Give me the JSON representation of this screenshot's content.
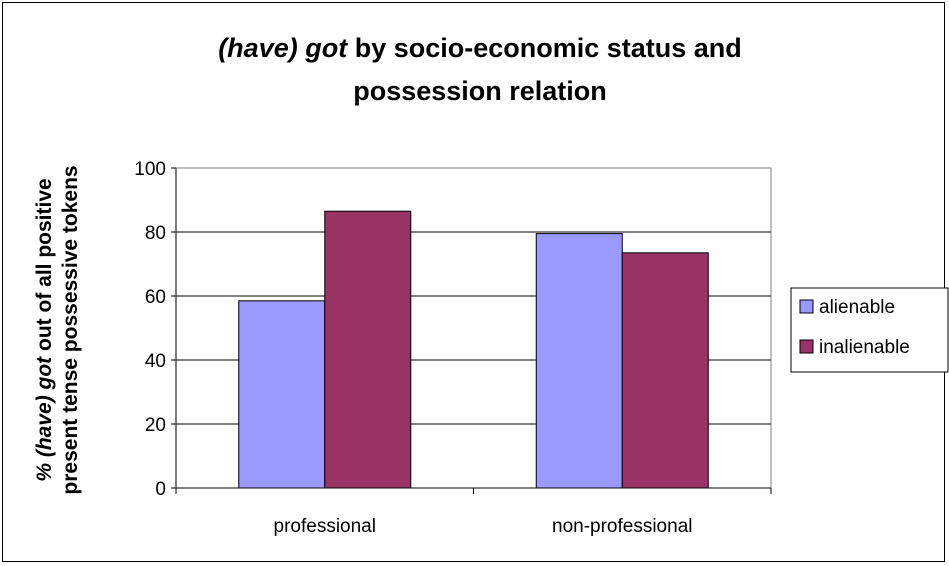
{
  "chart_data": {
    "type": "bar",
    "title_italic": "(have) got",
    "title_rest": " by socio-economic status and",
    "title_line2": "possession relation",
    "ylabel_italic": "% (have) got",
    "ylabel_rest": " out of all positive",
    "ylabel_line2": "present tense possessive tokens",
    "xlabel": "",
    "categories": [
      "professional",
      "non-professional"
    ],
    "series": [
      {
        "name": "alienable",
        "values": [
          58.5,
          79.5
        ],
        "color": "#9999ff"
      },
      {
        "name": "inalienable",
        "values": [
          86.5,
          73.5
        ],
        "color": "#993366"
      }
    ],
    "ylim": [
      0,
      100
    ],
    "yticks": [
      "0",
      "20",
      "40",
      "60",
      "80",
      "100"
    ],
    "grid": true,
    "legend_position": "right",
    "plot_background": "#ffffff"
  }
}
